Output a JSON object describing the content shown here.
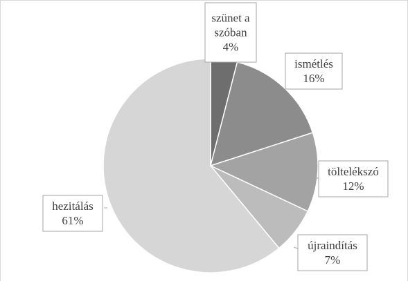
{
  "chart_data": {
    "type": "pie",
    "slices": [
      {
        "label": [
          "szünet a",
          "szóban"
        ],
        "pct_text": "4%",
        "value": 4,
        "color": "#6e6e6e"
      },
      {
        "label": [
          "ismétlés"
        ],
        "pct_text": "16%",
        "value": 16,
        "color": "#8c8c8c"
      },
      {
        "label": [
          "töltelékszó"
        ],
        "pct_text": "12%",
        "value": 12,
        "color": "#a3a3a3"
      },
      {
        "label": [
          "újraindítás"
        ],
        "pct_text": "7%",
        "value": 7,
        "color": "#bcbcbc"
      },
      {
        "label": [
          "hezitálás"
        ],
        "pct_text": "61%",
        "value": 61,
        "color": "#d6d6d6"
      }
    ],
    "start": "12 o'clock",
    "direction": "clockwise",
    "legend": "none",
    "data_labels": "callout boxes with category name and percentage"
  }
}
